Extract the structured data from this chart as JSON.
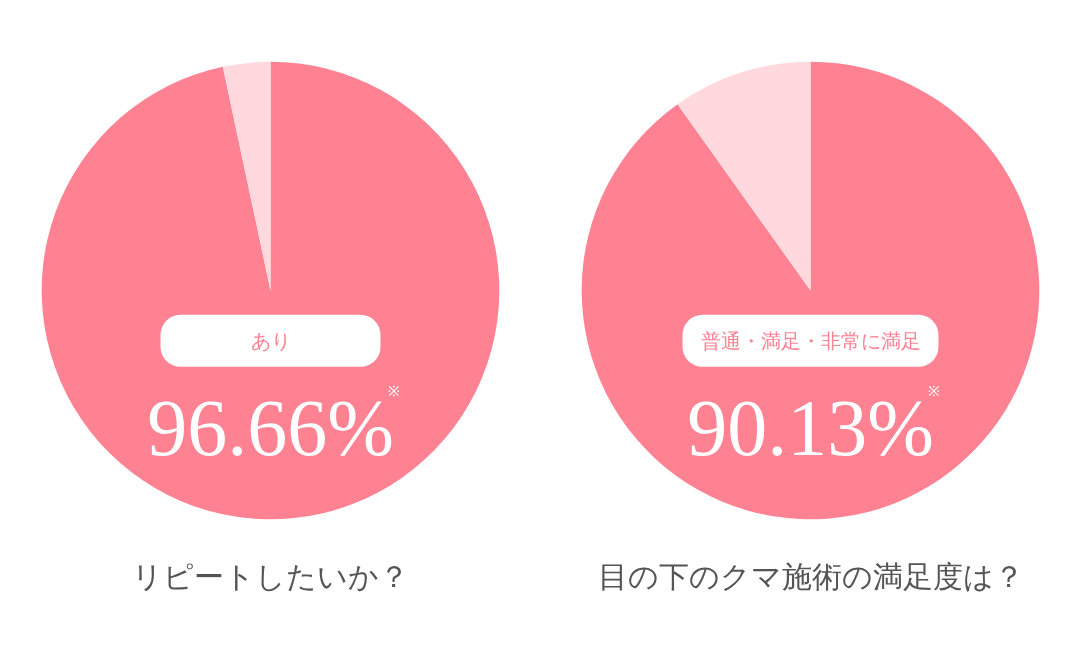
{
  "chart_data": [
    {
      "type": "pie",
      "title": "リピートしたいか？",
      "categories": [
        "あり",
        null
      ],
      "values": [
        96.66,
        3.34
      ],
      "colors": [
        "#ff8293",
        "#ffd9de"
      ],
      "value_labels": [
        "96.66%",
        null
      ],
      "annotations": [
        "※"
      ]
    },
    {
      "type": "pie",
      "title": "目の下のクマ施術の満足度は？",
      "categories": [
        "普通・満足・非常に満足",
        null
      ],
      "values": [
        90.13,
        9.87
      ],
      "colors": [
        "#ff8293",
        "#ffd9de"
      ],
      "value_labels": [
        "90.13%",
        null
      ],
      "annotations": [
        "※"
      ]
    }
  ]
}
